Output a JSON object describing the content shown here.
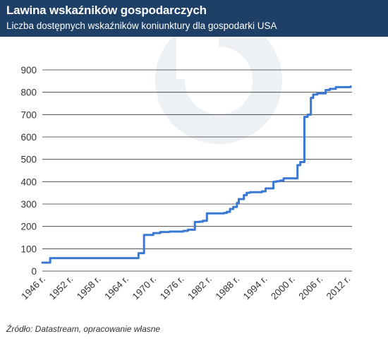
{
  "header": {
    "title": "Lawina wskaźników gospodarczych",
    "subtitle": "Liczba dostępnych wskaźników koniunktury dla gospodarki USA"
  },
  "footer": {
    "source": "Źródło: Datastream, opracowanie własne"
  },
  "colors": {
    "header_bg": "#1e3f66",
    "line": "#3a78d4",
    "grid": "#333333",
    "watermark": "#edf0f4"
  },
  "chart_data": {
    "type": "line",
    "title": "Lawina wskaźników gospodarczych",
    "subtitle": "Liczba dostępnych wskaźników koniunktury dla gospodarki USA",
    "xlabel": "",
    "ylabel": "",
    "xlim": [
      1946,
      2013
    ],
    "ylim": [
      0,
      900
    ],
    "yticks": [
      0,
      100,
      200,
      300,
      400,
      500,
      600,
      700,
      800,
      900
    ],
    "xticks": [
      {
        "value": 1946,
        "label": "1946 r."
      },
      {
        "value": 1952,
        "label": "1952 r."
      },
      {
        "value": 1958,
        "label": "1958 r."
      },
      {
        "value": 1964,
        "label": "1964 r."
      },
      {
        "value": 1970,
        "label": "1970 r."
      },
      {
        "value": 1976,
        "label": "1976 r."
      },
      {
        "value": 1982,
        "label": "1982 r."
      },
      {
        "value": 1988,
        "label": "1988 r."
      },
      {
        "value": 1994,
        "label": "1994 r."
      },
      {
        "value": 2000,
        "label": "2000 r."
      },
      {
        "value": 2006,
        "label": "2006 r."
      },
      {
        "value": 2012,
        "label": "2012 r."
      }
    ],
    "grid": "horizontal",
    "series": [
      {
        "step": "after",
        "x": [
          1946,
          1947.7,
          1966.8,
          1968,
          1970,
          1971.5,
          1973.5,
          1976.5,
          1977.5,
          1979,
          1980,
          1980.7,
          1981.6,
          1985.3,
          1985.9,
          1986.6,
          1987.3,
          1988.1,
          1988.5,
          1989.6,
          1990.2,
          1990.9,
          1993.5,
          1994.3,
          1996,
          1996.7,
          1997.4,
          1998.2,
          2001.2,
          2001.8,
          2002.7,
          2003.4,
          2004.1,
          2004.6,
          2005.5,
          2007.3,
          2008.2,
          2009.5,
          2012.7
        ],
        "y": [
          38,
          58,
          80,
          162,
          170,
          175,
          177,
          180,
          185,
          220,
          221,
          225,
          258,
          260,
          265,
          278,
          287,
          305,
          322,
          340,
          350,
          353,
          357,
          370,
          400,
          402,
          405,
          415,
          474,
          488,
          690,
          700,
          775,
          790,
          795,
          810,
          815,
          823,
          826
        ]
      }
    ]
  }
}
